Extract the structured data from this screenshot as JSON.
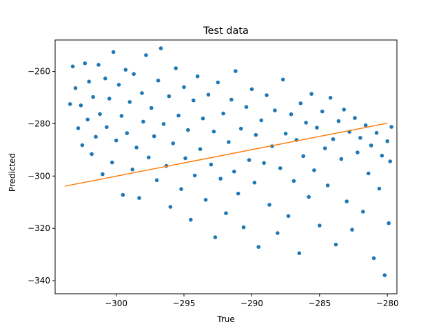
{
  "chart_data": {
    "type": "scatter",
    "title": "Test data",
    "xlabel": "True",
    "ylabel": "Predicted",
    "xlim": [
      -304.5,
      -279.3
    ],
    "ylim": [
      -345,
      -248
    ],
    "xticks": [
      -300,
      -295,
      -290,
      -285,
      -280
    ],
    "yticks": [
      -260,
      -280,
      -300,
      -320,
      -340
    ],
    "grid": false,
    "colors": {
      "points": "#1f77b4",
      "fit_line": "#ff7f0e"
    },
    "series": [
      {
        "type": "scatter",
        "points": [
          [
            -303.4,
            -272.5
          ],
          [
            -303.2,
            -258.1
          ],
          [
            -303.0,
            -266.4
          ],
          [
            -302.8,
            -281.7
          ],
          [
            -302.6,
            -273.0
          ],
          [
            -302.5,
            -288.2
          ],
          [
            -302.3,
            -256.9
          ],
          [
            -302.1,
            -278.4
          ],
          [
            -302.0,
            -263.9
          ],
          [
            -301.8,
            -291.6
          ],
          [
            -301.7,
            -269.8
          ],
          [
            -301.5,
            -285.0
          ],
          [
            -301.3,
            -257.5
          ],
          [
            -301.2,
            -276.3
          ],
          [
            -301.0,
            -299.3
          ],
          [
            -300.8,
            -262.7
          ],
          [
            -300.7,
            -281.3
          ],
          [
            -300.5,
            -270.4
          ],
          [
            -300.3,
            -294.8
          ],
          [
            -300.2,
            -252.6
          ],
          [
            -300.0,
            -286.4
          ],
          [
            -299.8,
            -265.1
          ],
          [
            -299.6,
            -277.0
          ],
          [
            -299.5,
            -307.2
          ],
          [
            -299.3,
            -259.4
          ],
          [
            -299.2,
            -283.6
          ],
          [
            -299.0,
            -271.7
          ],
          [
            -298.8,
            -297.5
          ],
          [
            -298.7,
            -261.0
          ],
          [
            -298.5,
            -289.1
          ],
          [
            -298.3,
            -308.4
          ],
          [
            -298.1,
            -268.3
          ],
          [
            -298.0,
            -279.2
          ],
          [
            -297.8,
            -253.8
          ],
          [
            -297.6,
            -292.9
          ],
          [
            -297.4,
            -274.0
          ],
          [
            -297.2,
            -284.8
          ],
          [
            -297.0,
            -301.6
          ],
          [
            -296.9,
            -263.5
          ],
          [
            -296.7,
            -251.2
          ],
          [
            -296.5,
            -280.1
          ],
          [
            -296.3,
            -296.1
          ],
          [
            -296.1,
            -269.5
          ],
          [
            -296.0,
            -311.8
          ],
          [
            -295.8,
            -287.5
          ],
          [
            -295.6,
            -258.8
          ],
          [
            -295.4,
            -276.9
          ],
          [
            -295.2,
            -305.0
          ],
          [
            -295.0,
            -266.0
          ],
          [
            -294.9,
            -293.2
          ],
          [
            -294.7,
            -282.4
          ],
          [
            -294.5,
            -316.7
          ],
          [
            -294.3,
            -271.1
          ],
          [
            -294.2,
            -299.8
          ],
          [
            -294.0,
            -261.9
          ],
          [
            -293.8,
            -289.7
          ],
          [
            -293.6,
            -278.0
          ],
          [
            -293.4,
            -309.1
          ],
          [
            -293.2,
            -268.9
          ],
          [
            -293.0,
            -295.6
          ],
          [
            -292.8,
            -283.0
          ],
          [
            -292.7,
            -323.4
          ],
          [
            -292.5,
            -264.2
          ],
          [
            -292.3,
            -301.0
          ],
          [
            -292.1,
            -276.1
          ],
          [
            -291.9,
            -314.2
          ],
          [
            -291.7,
            -287.0
          ],
          [
            -291.5,
            -270.8
          ],
          [
            -291.3,
            -298.3
          ],
          [
            -291.2,
            -259.9
          ],
          [
            -291.0,
            -306.7
          ],
          [
            -290.8,
            -281.9
          ],
          [
            -290.6,
            -319.6
          ],
          [
            -290.4,
            -273.6
          ],
          [
            -290.2,
            -293.9
          ],
          [
            -290.0,
            -266.8
          ],
          [
            -289.8,
            -302.5
          ],
          [
            -289.7,
            -284.3
          ],
          [
            -289.5,
            -327.1
          ],
          [
            -289.3,
            -278.7
          ],
          [
            -289.1,
            -295.0
          ],
          [
            -288.9,
            -269.1
          ],
          [
            -288.7,
            -311.0
          ],
          [
            -288.5,
            -288.6
          ],
          [
            -288.3,
            -274.9
          ],
          [
            -288.1,
            -321.8
          ],
          [
            -287.9,
            -297.0
          ],
          [
            -287.7,
            -263.1
          ],
          [
            -287.5,
            -283.8
          ],
          [
            -287.3,
            -315.3
          ],
          [
            -287.1,
            -276.4
          ],
          [
            -286.9,
            -301.9
          ],
          [
            -286.7,
            -286.2
          ],
          [
            -286.5,
            -329.5
          ],
          [
            -286.4,
            -272.2
          ],
          [
            -286.2,
            -292.4
          ],
          [
            -286.0,
            -279.6
          ],
          [
            -285.8,
            -308.0
          ],
          [
            -285.6,
            -268.6
          ],
          [
            -285.4,
            -297.8
          ],
          [
            -285.2,
            -281.5
          ],
          [
            -285.0,
            -318.9
          ],
          [
            -284.8,
            -275.3
          ],
          [
            -284.6,
            -289.4
          ],
          [
            -284.4,
            -303.6
          ],
          [
            -284.2,
            -270.1
          ],
          [
            -284.0,
            -285.9
          ],
          [
            -283.8,
            -326.2
          ],
          [
            -283.6,
            -279.0
          ],
          [
            -283.4,
            -293.5
          ],
          [
            -283.2,
            -274.6
          ],
          [
            -283.0,
            -309.7
          ],
          [
            -282.8,
            -283.1
          ],
          [
            -282.6,
            -320.5
          ],
          [
            -282.4,
            -277.8
          ],
          [
            -282.2,
            -291.0
          ],
          [
            -282.0,
            -285.4
          ],
          [
            -281.8,
            -313.6
          ],
          [
            -281.6,
            -280.6
          ],
          [
            -281.4,
            -299.0
          ],
          [
            -281.2,
            -288.3
          ],
          [
            -281.0,
            -331.4
          ],
          [
            -280.8,
            -283.5
          ],
          [
            -280.6,
            -304.8
          ],
          [
            -280.4,
            -292.2
          ],
          [
            -280.2,
            -337.9
          ],
          [
            -280.0,
            -286.7
          ],
          [
            -279.9,
            -318.0
          ],
          [
            -279.8,
            -294.4
          ],
          [
            -279.7,
            -281.2
          ]
        ]
      },
      {
        "type": "line",
        "points": [
          [
            -303.8,
            -303.9
          ],
          [
            -280.0,
            -279.8
          ]
        ]
      }
    ]
  }
}
